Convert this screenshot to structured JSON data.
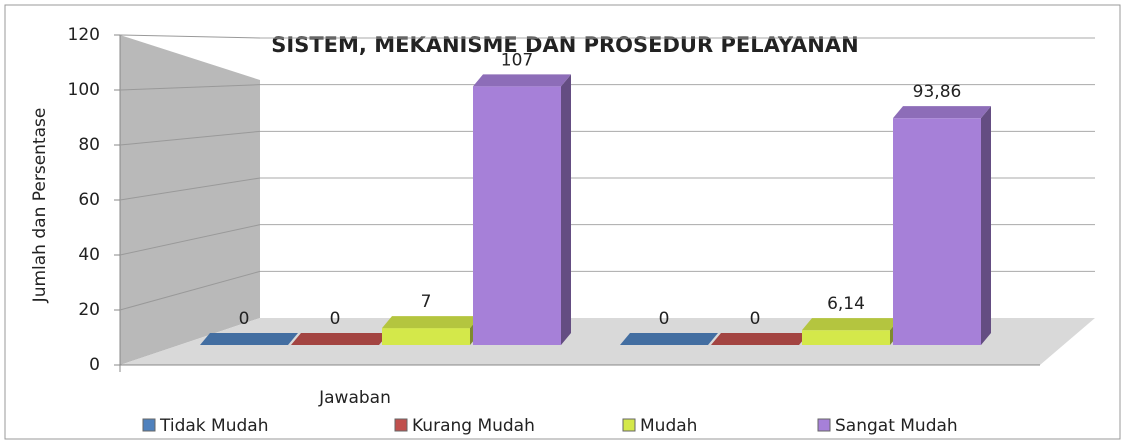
{
  "chart_data": {
    "type": "bar3d",
    "title": "SISTEM, MEKANISME DAN PROSEDUR PELAYANAN",
    "y_label": "Jumlah dan Persentase",
    "categories": [
      "Jawaban",
      null
    ],
    "series": [
      {
        "name": "Tidak Mudah",
        "color": "#4f81bd",
        "values": [
          0,
          0
        ],
        "value_labels": [
          "0",
          "0"
        ]
      },
      {
        "name": "Kurang Mudah",
        "color": "#c0504d",
        "values": [
          0,
          0
        ],
        "value_labels": [
          "0",
          "0"
        ]
      },
      {
        "name": "Mudah",
        "color": "#d4e84a",
        "values": [
          7,
          6.14
        ],
        "value_labels": [
          "7",
          "6,14"
        ]
      },
      {
        "name": "Sangat Mudah",
        "color": "#a680d8",
        "values": [
          107,
          93.86
        ],
        "value_labels": [
          "107",
          "93,86"
        ]
      }
    ],
    "ylim": [
      0,
      120
    ],
    "yticks": [
      0,
      20,
      40,
      60,
      80,
      100,
      120
    ],
    "grid": true,
    "legend": "bottom"
  }
}
